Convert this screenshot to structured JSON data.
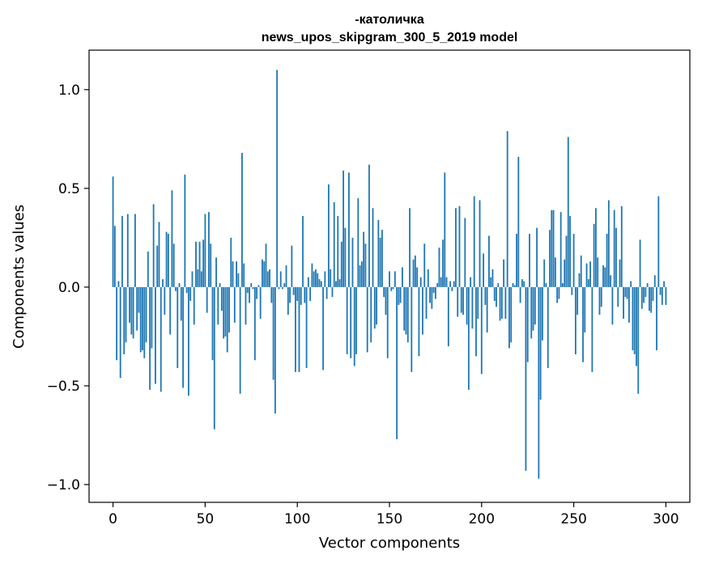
{
  "chart_data": {
    "type": "bar",
    "title": "-католичка",
    "subtitle": "news_upos_skipgram_300_5_2019 model",
    "xlabel": "Vector components",
    "ylabel": "Components values",
    "xlim": [
      -13,
      313
    ],
    "ylim": [
      -1.09,
      1.2
    ],
    "xticks": [
      0,
      50,
      100,
      150,
      200,
      250,
      300
    ],
    "xtick_labels": [
      "0",
      "50",
      "100",
      "150",
      "200",
      "250",
      "300"
    ],
    "yticks": [
      -1.0,
      -0.5,
      0.0,
      0.5,
      1.0
    ],
    "ytick_labels": [
      "−1.0",
      "−0.5",
      "0.0",
      "0.5",
      "1.0"
    ],
    "grid": false,
    "bar_color": "#1f77b4",
    "series": [
      {
        "values": [
          0.56,
          0.31,
          -0.37,
          0.03,
          -0.46,
          0.36,
          -0.34,
          -0.28,
          0.37,
          -0.18,
          -0.24,
          -0.26,
          0.37,
          -0.22,
          -0.13,
          -0.33,
          -0.32,
          -0.36,
          -0.28,
          0.18,
          -0.52,
          -0.31,
          0.42,
          -0.49,
          0.21,
          0.33,
          -0.53,
          0.04,
          -0.14,
          0.28,
          0.27,
          -0.24,
          0.49,
          0.22,
          -0.02,
          -0.41,
          0.02,
          -0.17,
          -0.51,
          0.57,
          -0.03,
          -0.55,
          -0.07,
          0.08,
          -0.19,
          0.23,
          0.09,
          0.23,
          0.08,
          0.24,
          0.37,
          -0.13,
          0.38,
          0.22,
          -0.37,
          -0.72,
          0.15,
          -0.19,
          0.02,
          -0.12,
          -0.26,
          -0.25,
          -0.33,
          -0.23,
          0.25,
          0.13,
          -0.18,
          0.13,
          0.07,
          -0.54,
          0.68,
          0.12,
          -0.19,
          -0.03,
          -0.08,
          0.02,
          -0.01,
          -0.37,
          -0.06,
          0.01,
          -0.16,
          0.14,
          0.13,
          0.22,
          0.08,
          0.09,
          -0.08,
          -0.47,
          -0.64,
          1.1,
          -0.01,
          0.08,
          -0.01,
          0.02,
          0.11,
          -0.14,
          -0.08,
          0.21,
          -0.04,
          -0.43,
          -0.07,
          -0.43,
          -0.09,
          0.36,
          -0.08,
          -0.41,
          0.05,
          -0.07,
          0.12,
          0.08,
          0.09,
          0.07,
          0.04,
          0.03,
          -0.42,
          0.08,
          -0.06,
          0.52,
          0.09,
          -0.05,
          0.43,
          0.03,
          0.36,
          0.04,
          0.23,
          0.59,
          0.3,
          -0.34,
          0.58,
          -0.36,
          0.25,
          -0.4,
          -0.34,
          0.45,
          0.11,
          0.13,
          0.28,
          0.22,
          -0.33,
          0.62,
          -0.28,
          0.4,
          -0.21,
          -0.19,
          0.34,
          0.25,
          0.29,
          -0.05,
          -0.14,
          -0.36,
          0.08,
          -0.02,
          -0.01,
          0.08,
          -0.77,
          -0.09,
          -0.08,
          0.1,
          -0.22,
          -0.24,
          -0.28,
          0.4,
          -0.43,
          0.14,
          0.16,
          0.1,
          -0.35,
          0.05,
          -0.24,
          0.22,
          -0.16,
          0.09,
          -0.08,
          -0.11,
          -0.03,
          -0.06,
          0.02,
          0.2,
          0.05,
          0.24,
          0.58,
          0.05,
          -0.3,
          0.03,
          -0.02,
          0.03,
          0.4,
          -0.15,
          0.41,
          -0.13,
          -0.14,
          0.35,
          -0.19,
          -0.52,
          0.05,
          -0.21,
          0.46,
          -0.35,
          -0.16,
          0.44,
          -0.44,
          0.17,
          -0.09,
          -0.23,
          0.26,
          0.05,
          0.09,
          -0.07,
          -0.1,
          0.02,
          -0.17,
          -0.16,
          0.14,
          -0.16,
          0.79,
          -0.31,
          -0.28,
          0.02,
          0.01,
          0.27,
          0.66,
          -0.08,
          0.04,
          0.03,
          -0.93,
          -0.38,
          0.27,
          -0.26,
          -0.22,
          -0.19,
          0.3,
          -0.97,
          -0.57,
          -0.27,
          0.14,
          0.02,
          -0.41,
          0.29,
          0.39,
          0.39,
          0.15,
          -0.08,
          -0.06,
          0.38,
          0.02,
          0.14,
          0.26,
          0.76,
          0.36,
          -0.04,
          0.27,
          -0.34,
          -0.14,
          0.07,
          0.16,
          -0.38,
          -0.23,
          0.12,
          0.04,
          0.13,
          -0.43,
          0.32,
          0.4,
          0.15,
          -0.14,
          -0.1,
          0.11,
          0.1,
          0.27,
          0.44,
          0.06,
          -0.19,
          0.39,
          0.3,
          -0.1,
          0.14,
          0.41,
          -0.16,
          -0.05,
          -0.06,
          -0.18,
          0.03,
          -0.32,
          -0.34,
          -0.4,
          -0.54,
          0.24,
          -0.11,
          -0.08,
          -0.05,
          0.02,
          -0.12,
          -0.13,
          -0.07,
          0.06,
          -0.32,
          0.46,
          -0.04,
          -0.09,
          0.03,
          -0.09
        ]
      }
    ]
  }
}
